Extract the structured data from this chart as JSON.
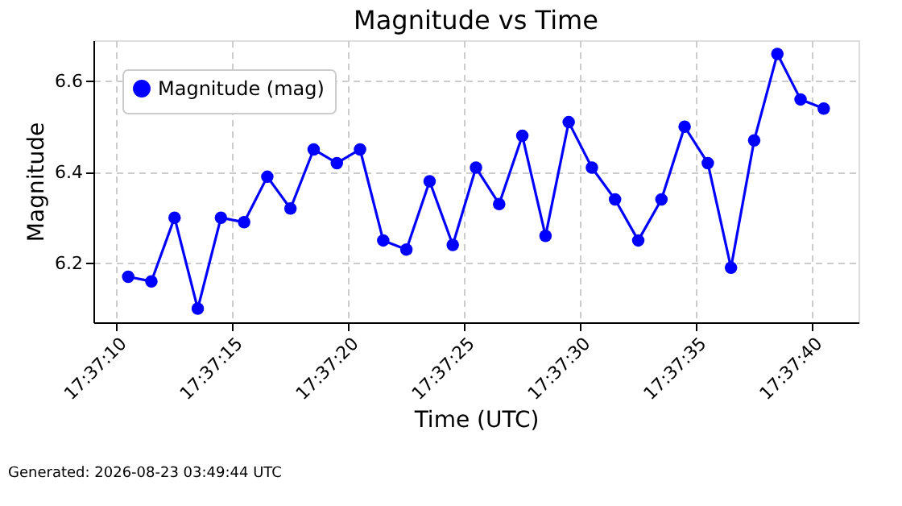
{
  "chart_data": {
    "type": "line",
    "title": "Magnitude vs Time",
    "xlabel": "Time (UTC)",
    "ylabel": "Magnitude",
    "x": [
      "2026-08-23T17:37:10.500",
      "2026-08-23T17:37:11.500",
      "2026-08-23T17:37:12.500",
      "2026-08-23T17:37:13.500",
      "2026-08-23T17:37:14.500",
      "2026-08-23T17:37:15.500",
      "2026-08-23T17:37:16.500",
      "2026-08-23T17:37:17.500",
      "2026-08-23T17:37:18.500",
      "2026-08-23T17:37:19.500",
      "2026-08-23T17:37:20.500",
      "2026-08-23T17:37:21.500",
      "2026-08-23T17:37:22.500",
      "2026-08-23T17:37:23.500",
      "2026-08-23T17:37:24.500",
      "2026-08-23T17:37:25.500",
      "2026-08-23T17:37:26.500",
      "2026-08-23T17:37:27.500",
      "2026-08-23T17:37:28.500",
      "2026-08-23T17:37:29.500",
      "2026-08-23T17:37:30.500",
      "2026-08-23T17:37:31.500",
      "2026-08-23T17:37:32.500",
      "2026-08-23T17:37:33.500",
      "2026-08-23T17:37:34.500",
      "2026-08-23T17:37:35.500",
      "2026-08-23T17:37:36.500",
      "2026-08-23T17:37:37.500",
      "2026-08-23T17:37:38.500",
      "2026-08-23T17:37:39.500",
      "2026-08-23T17:37:40.500"
    ],
    "series": [
      {
        "name": "Magnitude (mag)",
        "color": "#0000ff",
        "values": [
          6.17,
          6.16,
          6.3,
          6.1,
          6.3,
          6.29,
          6.39,
          6.32,
          6.45,
          6.42,
          6.45,
          6.25,
          6.23,
          6.38,
          6.24,
          6.41,
          6.33,
          6.48,
          6.26,
          6.51,
          6.41,
          6.34,
          6.25,
          6.34,
          6.5,
          6.42,
          6.19,
          6.47,
          6.66,
          6.56,
          6.54
        ]
      }
    ],
    "xlim": [
      "2026-08-23T17:37:09",
      "2026-08-23T17:37:42"
    ],
    "xticks": [
      {
        "value": "2026-08-23T17:37:10",
        "label": "17:37:10"
      },
      {
        "value": "2026-08-23T17:37:15",
        "label": "17:37:15"
      },
      {
        "value": "2026-08-23T17:37:20",
        "label": "17:37:20"
      },
      {
        "value": "2026-08-23T17:37:25",
        "label": "17:37:25"
      },
      {
        "value": "2026-08-23T17:37:30",
        "label": "17:37:30"
      },
      {
        "value": "2026-08-23T17:37:35",
        "label": "17:37:35"
      },
      {
        "value": "2026-08-23T17:37:40",
        "label": "17:37:40"
      }
    ],
    "ylim": [
      6.07,
      6.69
    ],
    "yticks": [
      6.2,
      6.4,
      6.6
    ],
    "grid": true,
    "legend": "top left",
    "marker": "circle",
    "line_style": "solid",
    "annotations": [
      "Generated: 2026-08-23 03:49:44 UTC"
    ]
  }
}
